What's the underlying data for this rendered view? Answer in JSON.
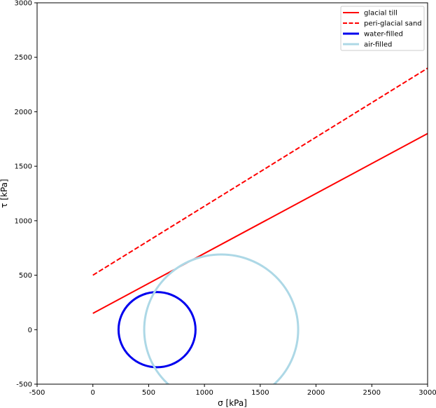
{
  "chart_data": {
    "type": "line",
    "title": "",
    "xlabel": "σ [kPa]",
    "ylabel": "τ [kPa]",
    "xlim": [
      -500,
      3000
    ],
    "ylim": [
      -500,
      3000
    ],
    "x_ticks": [
      -500,
      0,
      500,
      1000,
      1500,
      2000,
      2500,
      3000
    ],
    "y_ticks": [
      -500,
      0,
      500,
      1000,
      1500,
      2000,
      2500,
      3000
    ],
    "grid": false,
    "legend_position": "top-right",
    "series": [
      {
        "name": "glacial till",
        "kind": "line",
        "style": "solid",
        "color": "#ff0000",
        "x": [
          0,
          3000
        ],
        "y": [
          150,
          1800
        ]
      },
      {
        "name": "peri-glacial sand",
        "kind": "line",
        "style": "dashed",
        "color": "#ff0000",
        "x": [
          0,
          3000
        ],
        "y": [
          500,
          2400
        ]
      },
      {
        "name": "water-filled",
        "kind": "circle",
        "style": "solid",
        "color": "#0000ee",
        "center": [
          575,
          0
        ],
        "radius": 345
      },
      {
        "name": "air-filled",
        "kind": "circle",
        "style": "solid",
        "color": "#add8e6",
        "center": [
          1150,
          0
        ],
        "radius": 690
      }
    ]
  }
}
